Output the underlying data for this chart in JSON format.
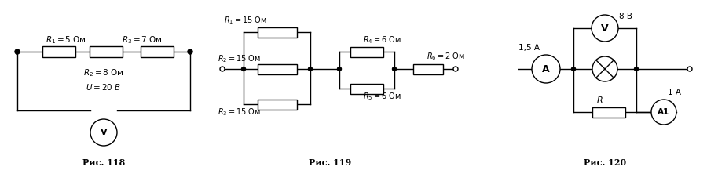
{
  "fig118": {
    "caption": "Рис. 118",
    "R1_label": "R_1 = 5 Ом",
    "R3_label": "R_3 = 7 Ом",
    "R2_label": "R_2 = 8 Ом",
    "U_label": "U = 20 В",
    "V_label": "V"
  },
  "fig119": {
    "caption": "Рис. 119",
    "R1_label": "R_1 = 15 Ом",
    "R2_label": "R_2 = 15 Ом",
    "R3_label": "R_3 = 15 Ом",
    "R4_label": "R_4 = 6 Ом",
    "R5_label": "R_5 = 6 Ом",
    "R6_label": "R_6 = 2 Ом"
  },
  "fig120": {
    "caption": "Рис. 120",
    "A_label": "A",
    "I_label": "1,5 А",
    "V_label": "V",
    "U_label": "8 В",
    "R_label": "R",
    "A1_label": "A1",
    "I1_label": "1 А"
  },
  "bg_color": "#ffffff",
  "line_color": "#000000"
}
